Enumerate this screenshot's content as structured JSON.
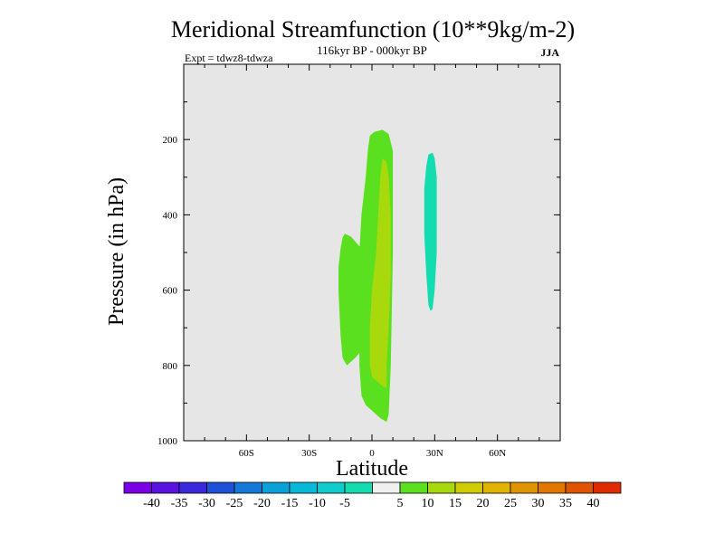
{
  "chart_data": {
    "type": "contour",
    "title": "Meridional Streamfunction (10**9kg/m-2)",
    "subtitle": "116kyr BP - 000kyr BP",
    "left_label": "Expt = tdwz8-tdwza",
    "right_label": "JJA",
    "xlabel": "Latitude",
    "ylabel": "Pressure (in hPa)",
    "xlim": [
      -90,
      90
    ],
    "ylim": [
      1000,
      0
    ],
    "x_ticks": [
      {
        "value": -60,
        "label": "60S"
      },
      {
        "value": -30,
        "label": "30S"
      },
      {
        "value": 0,
        "label": "0"
      },
      {
        "value": 30,
        "label": "30N"
      },
      {
        "value": 60,
        "label": "60N"
      }
    ],
    "y_ticks": [
      {
        "value": 200,
        "label": "200"
      },
      {
        "value": 400,
        "label": "400"
      },
      {
        "value": 600,
        "label": "600"
      },
      {
        "value": 800,
        "label": "800"
      },
      {
        "value": 1000,
        "label": "1000"
      }
    ],
    "background_color": "#e6e6e6",
    "regions": [
      {
        "level": "5 to 10",
        "color": "#5ae01e",
        "points": [
          [
            1,
            180
          ],
          [
            5,
            174
          ],
          [
            8,
            185
          ],
          [
            10,
            230
          ],
          [
            10,
            500
          ],
          [
            9,
            800
          ],
          [
            8,
            930
          ],
          [
            7,
            950
          ],
          [
            4,
            940
          ],
          [
            0,
            920
          ],
          [
            -3,
            905
          ],
          [
            -5,
            880
          ],
          [
            -6,
            800
          ],
          [
            -6,
            500
          ],
          [
            -5,
            400
          ],
          [
            -3,
            300
          ],
          [
            -2,
            230
          ],
          [
            -1,
            190
          ]
        ]
      },
      {
        "level": "5 to 10",
        "color": "#5ae01e",
        "points": [
          [
            -13,
            450
          ],
          [
            -10,
            458
          ],
          [
            -5,
            490
          ],
          [
            -3,
            600
          ],
          [
            -3,
            700
          ],
          [
            -5,
            760
          ],
          [
            -8,
            780
          ],
          [
            -10,
            790
          ],
          [
            -12,
            800
          ],
          [
            -14,
            780
          ],
          [
            -15,
            720
          ],
          [
            -16,
            600
          ],
          [
            -16,
            540
          ],
          [
            -15,
            490
          ],
          [
            -14,
            460
          ]
        ]
      },
      {
        "level": "10 to 15",
        "color": "#a7d90c",
        "points": [
          [
            5,
            250
          ],
          [
            7,
            260
          ],
          [
            8,
            300
          ],
          [
            9,
            400
          ],
          [
            9,
            560
          ],
          [
            8,
            700
          ],
          [
            7,
            800
          ],
          [
            7,
            860
          ],
          [
            5,
            855
          ],
          [
            0,
            830
          ],
          [
            -1,
            800
          ],
          [
            -1,
            700
          ],
          [
            0,
            600
          ],
          [
            2,
            500
          ],
          [
            3,
            400
          ],
          [
            4,
            300
          ]
        ]
      },
      {
        "level": "-10 to -5",
        "color": "#13dcb0",
        "points": [
          [
            27,
            240
          ],
          [
            29,
            235
          ],
          [
            30,
            250
          ],
          [
            31,
            300
          ],
          [
            31,
            500
          ],
          [
            30,
            600
          ],
          [
            29,
            650
          ],
          [
            28,
            655
          ],
          [
            27,
            640
          ],
          [
            26,
            560
          ],
          [
            25,
            450
          ],
          [
            25,
            330
          ],
          [
            26,
            270
          ]
        ]
      }
    ],
    "colorbar": {
      "colors": [
        "#7a00e6",
        "#5a12e0",
        "#3c28dc",
        "#1e50d8",
        "#1478d8",
        "#0aa0d8",
        "#08b8d8",
        "#10cccc",
        "#13dcb0",
        "#f0f0f0",
        "#5ae01e",
        "#a7d90c",
        "#d0cc00",
        "#e0b400",
        "#e09400",
        "#e07800",
        "#e05400",
        "#e02a00"
      ],
      "labels": [
        "-40",
        "-35",
        "-30",
        "-25",
        "-20",
        "-15",
        "-10",
        "-5",
        "5",
        "10",
        "15",
        "20",
        "25",
        "30",
        "35",
        "40"
      ]
    }
  }
}
